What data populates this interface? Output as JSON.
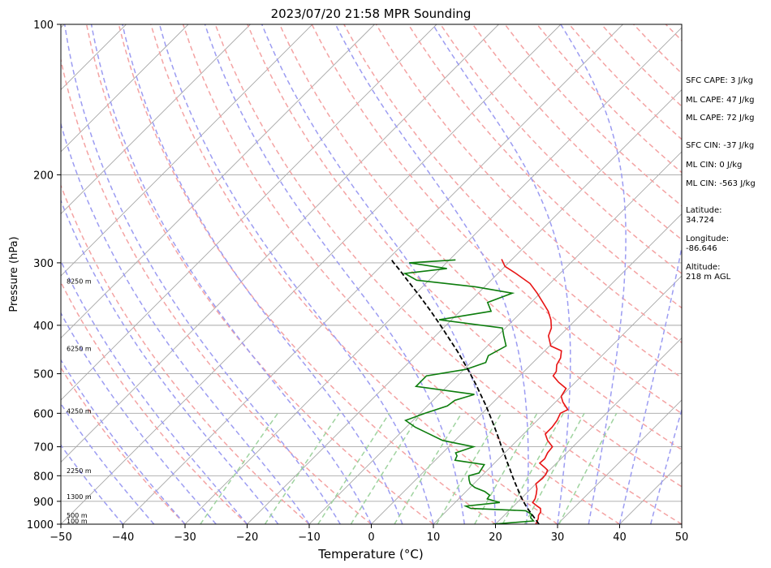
{
  "chart_data": {
    "type": "line",
    "title": "2023/07/20 21:58 MPR Sounding",
    "xlabel": "Temperature (°C)",
    "ylabel": "Pressure (hPa)",
    "xlim": [
      -50,
      50
    ],
    "ylim": [
      1000,
      100
    ],
    "y_scale": "log",
    "grid": true,
    "skew": true,
    "x_ticks": [
      "−50",
      "−40",
      "−30",
      "−20",
      "−10",
      "0",
      "10",
      "20",
      "30",
      "40",
      "50"
    ],
    "y_ticks": [
      "1000",
      "900",
      "800",
      "700",
      "600",
      "500",
      "400",
      "300",
      "200",
      "100"
    ],
    "series": [
      {
        "role": "temperature",
        "color": "#e81414",
        "pressure": [
          1000,
          985,
          975,
          960,
          945,
          930,
          920,
          905,
          890,
          870,
          850,
          830,
          810,
          795,
          780,
          770,
          755,
          740,
          720,
          700,
          680,
          660,
          640,
          620,
          600,
          590,
          570,
          555,
          535,
          520,
          505,
          495,
          480,
          465,
          450,
          440,
          420,
          405,
          390,
          375,
          360,
          345,
          330,
          315,
          305,
          295
        ],
        "temp": [
          26.5,
          26.2,
          26.0,
          25.5,
          25.3,
          24.7,
          23.8,
          22.5,
          22.3,
          21.7,
          21.0,
          20.0,
          20.2,
          20.1,
          19.7,
          18.8,
          17.3,
          17.4,
          16.9,
          16.7,
          14.9,
          13.5,
          13.5,
          13.2,
          12.6,
          13.2,
          11.2,
          10.0,
          9.5,
          7.3,
          5.4,
          5.2,
          4.2,
          3.7,
          2.7,
          0.2,
          -1.8,
          -2.6,
          -4.0,
          -5.8,
          -8.1,
          -10.5,
          -13.2,
          -17.1,
          -20.0,
          -21.7
        ]
      },
      {
        "role": "dewpoint",
        "color": "#0d7d0d",
        "pressure": [
          1000,
          985,
          970,
          955,
          940,
          930,
          920,
          905,
          890,
          875,
          860,
          845,
          830,
          815,
          800,
          790,
          760,
          745,
          730,
          720,
          700,
          680,
          660,
          640,
          620,
          600,
          580,
          565,
          550,
          530,
          505,
          490,
          475,
          460,
          440,
          420,
          405,
          390,
          375,
          360,
          345,
          335,
          325,
          315,
          308,
          300,
          296
        ],
        "dewp": [
          19.5,
          25.6,
          24.6,
          24.2,
          22.7,
          13.5,
          12.3,
          17.2,
          14.6,
          14.4,
          13.0,
          10.8,
          9.4,
          8.6,
          7.9,
          9.1,
          8.6,
          3.2,
          2.8,
          2.1,
          4.0,
          -2.0,
          -5.2,
          -8.5,
          -11.2,
          -9.2,
          -6.8,
          -6.5,
          -4.3,
          -15.0,
          -15.0,
          -9.7,
          -7.6,
          -8.3,
          -7.0,
          -9.0,
          -10.5,
          -22.0,
          -15.0,
          -17.0,
          -14.5,
          -21.5,
          -32.0,
          -35.0,
          -29.0,
          -36.0,
          -29.0
        ]
      },
      {
        "role": "parcel",
        "color": "#000000",
        "style": "dashed",
        "pressure": [
          1000,
          975,
          950,
          925,
          900,
          875,
          850,
          825,
          800,
          775,
          750,
          725,
          700,
          675,
          650,
          625,
          600,
          575,
          550,
          525,
          500,
          475,
          450,
          425,
          400,
          375,
          350,
          325,
          310,
          300,
          295
        ],
        "temp": [
          27,
          25.5,
          23.9,
          22.3,
          20.8,
          19.3,
          17.9,
          16.4,
          14.9,
          13.4,
          11.8,
          10.2,
          8.5,
          6.8,
          5.0,
          3.1,
          1.1,
          -1.0,
          -3.3,
          -5.7,
          -8.3,
          -11.1,
          -14.1,
          -17.4,
          -20.9,
          -24.7,
          -28.9,
          -33.5,
          -36.4,
          -38.5,
          -39.5
        ]
      }
    ],
    "height_labels": [
      "100 m",
      "500 m",
      "1300 m",
      "2250 m",
      "4250 m",
      "6250 m",
      "8250 m"
    ],
    "height_label_pressures": [
      1000,
      970,
      890,
      790,
      600,
      450,
      330
    ],
    "annotations": [
      "SFC CAPE: 3 J/kg",
      "ML CAPE: 47 J/kg",
      "ML CAPE: 72 J/kg",
      "SFC CIN: -37 J/kg",
      "ML CIN: 0 J/kg",
      "ML CIN: -563 J/kg",
      "Latitude:",
      "34.724",
      "Longitude:",
      "-86.646",
      "Altitude:",
      "218 m AGL"
    ],
    "colors": {
      "isotherm": "#a6a6a6",
      "isobar": "#a6a6a6",
      "dry_adiabat": "#f4a3a3",
      "moist_adiabat": "#9c9cf2",
      "mixing_ratio": "#9fd39f"
    }
  }
}
